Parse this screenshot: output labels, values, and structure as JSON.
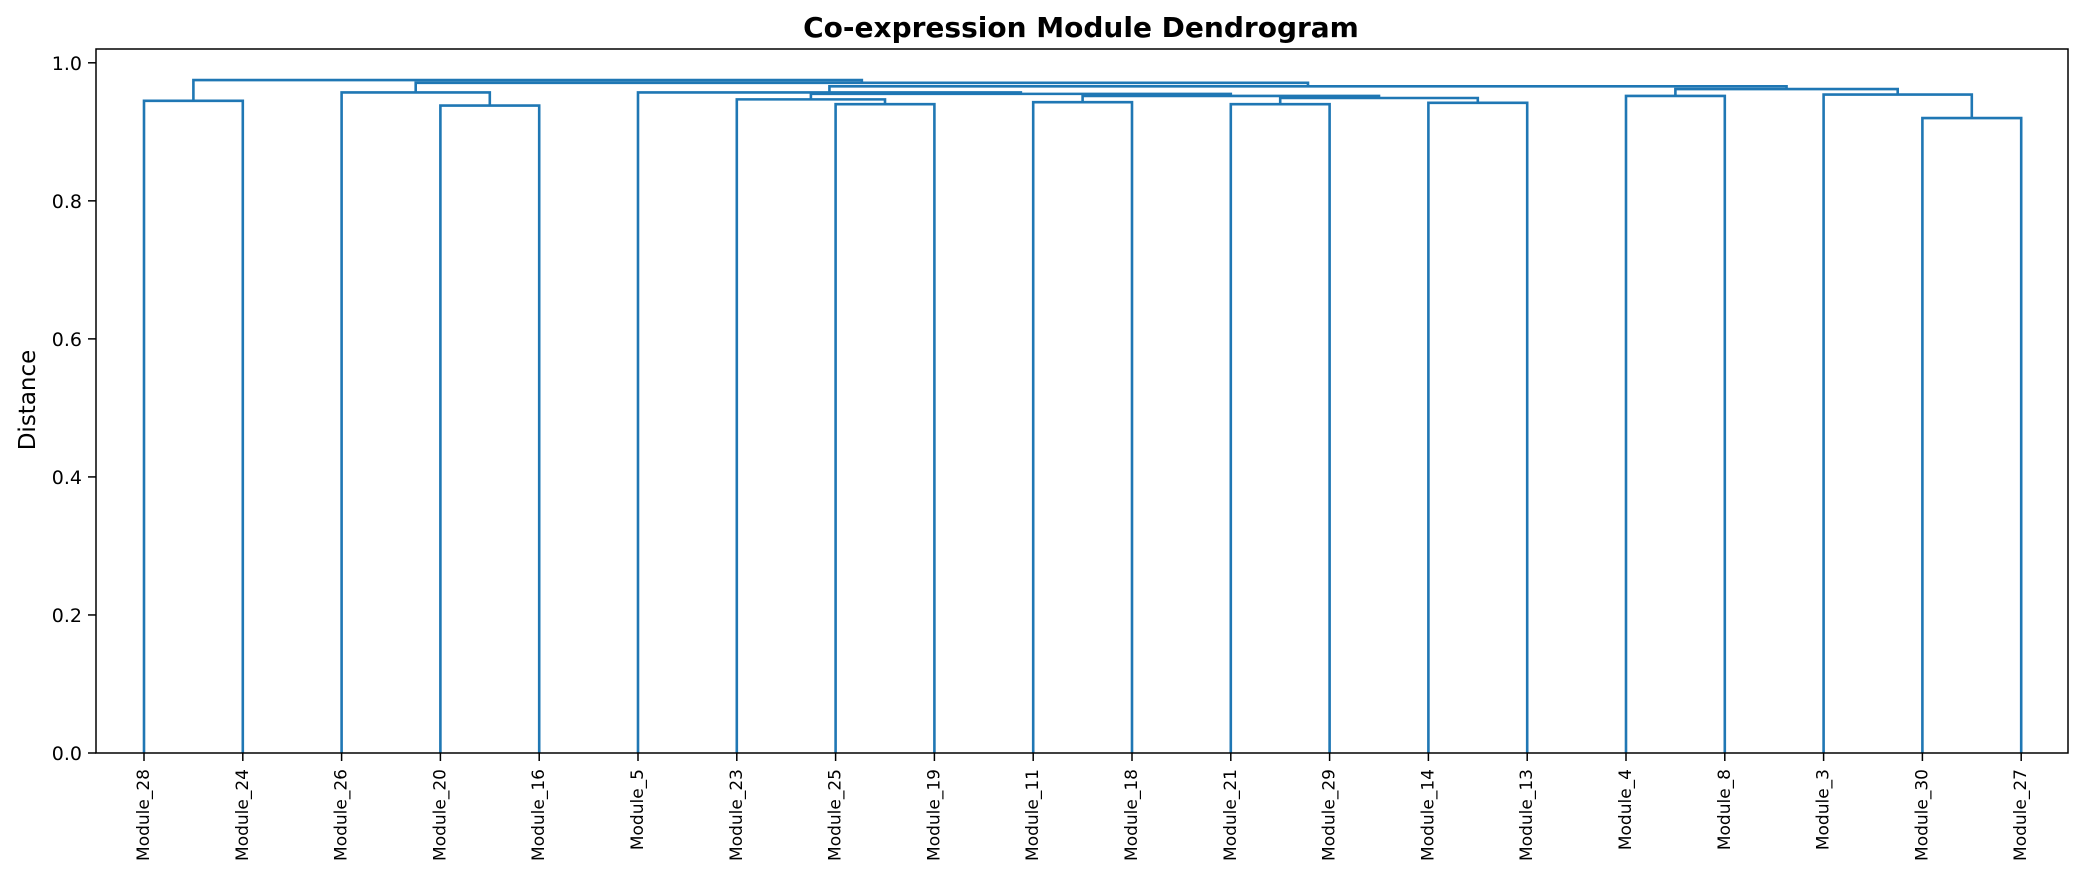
{
  "chart_data": {
    "type": "dendrogram",
    "title": "Co-expression Module Dendrogram",
    "xlabel": "",
    "ylabel": "Distance",
    "ylim": [
      0,
      1.02
    ],
    "yticks": [
      0.0,
      0.2,
      0.4,
      0.6,
      0.8,
      1.0
    ],
    "ytick_labels": [
      "0.0",
      "0.2",
      "0.4",
      "0.6",
      "0.8",
      "1.0"
    ],
    "grid": false,
    "line_color": "#1f77b4",
    "leaves": [
      "Module_28",
      "Module_24",
      "Module_26",
      "Module_20",
      "Module_16",
      "Module_5",
      "Module_23",
      "Module_25",
      "Module_19",
      "Module_11",
      "Module_18",
      "Module_21",
      "Module_29",
      "Module_14",
      "Module_13",
      "Module_4",
      "Module_8",
      "Module_3",
      "Module_30",
      "Module_27"
    ],
    "merges": [
      {
        "left": "Module_28",
        "right": "Module_24",
        "height": 0.945
      },
      {
        "left": "Module_20",
        "right": "Module_16",
        "height": 0.938
      },
      {
        "left": "Module_26",
        "right": "(Module_20, Module_16)",
        "height": 0.957
      },
      {
        "left": "Module_25",
        "right": "Module_19",
        "height": 0.94
      },
      {
        "left": "Module_23",
        "right": "(Module_25, Module_19)",
        "height": 0.947
      },
      {
        "left": "Module_11",
        "right": "Module_18",
        "height": 0.943
      },
      {
        "left": "Module_21",
        "right": "Module_29",
        "height": 0.94
      },
      {
        "left": "Module_14",
        "right": "Module_13",
        "height": 0.942
      },
      {
        "left": "(Module_21, Module_29)",
        "right": "(Module_14, Module_13)",
        "height": 0.949
      },
      {
        "left": "(Module_11, Module_18)",
        "right": "((Module_21, Module_29), (Module_14, Module_13))",
        "height": 0.952
      },
      {
        "left": "(Module_23, (Module_25, Module_19))",
        "right": "((Module_11, Module_18), ((Module_21, Module_29), (Module_14, Module_13)))",
        "height": 0.955
      },
      {
        "left": "Module_5",
        "right": "((Module_23, (Module_25, Module_19)), ((Module_11, Module_18), ((Module_21, Module_29), (Module_14, Module_13))))",
        "height": 0.957
      },
      {
        "left": "Module_4",
        "right": "Module_8",
        "height": 0.952
      },
      {
        "left": "Module_30",
        "right": "Module_27",
        "height": 0.92
      },
      {
        "left": "Module_3",
        "right": "(Module_30, Module_27)",
        "height": 0.954
      },
      {
        "left": "(Module_4, Module_8)",
        "right": "(Module_3, (Module_30, Module_27))",
        "height": 0.962
      },
      {
        "left": "(Module_5, ...)",
        "right": "((Module_4, Module_8), (Module_3, ...))",
        "height": 0.966
      },
      {
        "left": "(Module_26, (Module_20, Module_16))",
        "right": "((Module_5, ...), ((Module_4, Module_8), ...))",
        "height": 0.971
      },
      {
        "left": "(Module_28, Module_24)",
        "right": "((Module_26, ...), ((Module_5, ...), ...))",
        "height": 0.975
      }
    ]
  }
}
